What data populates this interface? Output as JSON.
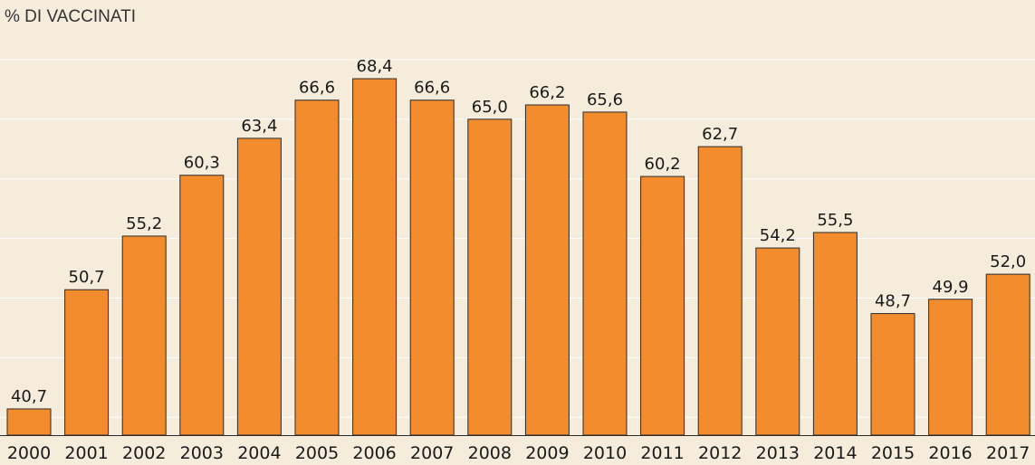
{
  "chart_data": {
    "type": "bar",
    "title": "",
    "xlabel": "",
    "ylabel": "% DI VACCINATI",
    "categories": [
      "2000",
      "2001",
      "2002",
      "2003",
      "2004",
      "2005",
      "2006",
      "2007",
      "2008",
      "2009",
      "2010",
      "2011",
      "2012",
      "2013",
      "2014",
      "2015",
      "2016",
      "2017"
    ],
    "values": [
      40.7,
      50.7,
      55.2,
      60.3,
      63.4,
      66.6,
      68.4,
      66.6,
      65.0,
      66.2,
      65.6,
      60.2,
      62.7,
      54.2,
      55.5,
      48.7,
      49.9,
      52.0
    ],
    "value_labels": [
      "40,7",
      "50,7",
      "55,2",
      "60,3",
      "63,4",
      "66,6",
      "68,4",
      "66,6",
      "65,0",
      "66,2",
      "65,6",
      "60,2",
      "62,7",
      "54,2",
      "55,5",
      "48,7",
      "49,9",
      "52,0"
    ],
    "ylim": [
      38.5,
      70
    ],
    "grid": true,
    "legend": "none",
    "colors": {
      "bar": "#f28c2c",
      "background": "#f5ecdc",
      "grid": "#ffffff"
    }
  }
}
